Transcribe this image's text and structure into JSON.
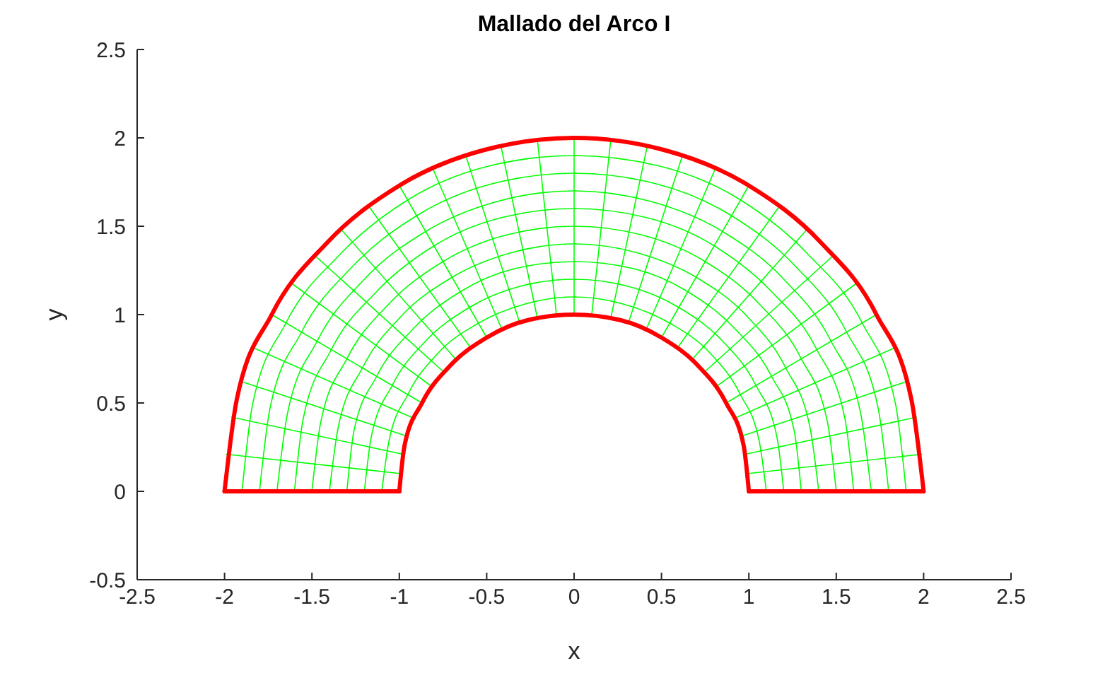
{
  "chart_data": {
    "type": "line",
    "title": "Mallado del Arco I",
    "xlabel": "x",
    "ylabel": "y",
    "xlim": [
      -2.5,
      2.5
    ],
    "xticks": [
      -2.5,
      -2,
      -1.5,
      -1,
      -0.5,
      0,
      0.5,
      1,
      1.5,
      2,
      2.5
    ],
    "ylim": [
      -0.5,
      2.5
    ],
    "yticks": [
      -0.5,
      0,
      0.5,
      1,
      1.5,
      2,
      2.5
    ],
    "series": [
      {
        "color": "#00ff00",
        "x": [
          1.1,
          1.06,
          0.95,
          0.78,
          0.55,
          0.28,
          0,
          -0.28,
          -0.55,
          -0.78,
          -0.95,
          -1.06,
          -1.1
        ],
        "values": [
          0,
          0.28,
          0.55,
          0.78,
          0.95,
          1.06,
          1.1,
          1.06,
          0.95,
          0.78,
          0.55,
          0.28,
          0
        ]
      },
      {
        "color": "#00ff00",
        "x": [
          1.2,
          1.16,
          1.04,
          0.85,
          0.6,
          0.31,
          0,
          -0.31,
          -0.6,
          -0.85,
          -1.04,
          -1.16,
          -1.2
        ],
        "values": [
          0,
          0.31,
          0.6,
          0.85,
          1.04,
          1.16,
          1.2,
          1.16,
          1.04,
          0.85,
          0.6,
          0.31,
          0
        ]
      },
      {
        "color": "#00ff00",
        "x": [
          1.3,
          1.26,
          1.13,
          0.92,
          0.65,
          0.34,
          0,
          -0.34,
          -0.65,
          -0.92,
          -1.13,
          -1.26,
          -1.3
        ],
        "values": [
          0,
          0.34,
          0.65,
          0.92,
          1.13,
          1.26,
          1.3,
          1.26,
          1.13,
          0.92,
          0.65,
          0.34,
          0
        ]
      },
      {
        "color": "#00ff00",
        "x": [
          1.4,
          1.35,
          1.21,
          0.99,
          0.7,
          0.36,
          0,
          -0.36,
          -0.7,
          -0.99,
          -1.21,
          -1.35,
          -1.4
        ],
        "values": [
          0,
          0.36,
          0.7,
          0.99,
          1.21,
          1.35,
          1.4,
          1.35,
          1.21,
          0.99,
          0.7,
          0.36,
          0
        ]
      },
      {
        "color": "#00ff00",
        "x": [
          1.5,
          1.45,
          1.3,
          1.06,
          0.75,
          0.39,
          0,
          -0.39,
          -0.75,
          -1.06,
          -1.3,
          -1.45,
          -1.5
        ],
        "values": [
          0,
          0.39,
          0.75,
          1.06,
          1.3,
          1.45,
          1.5,
          1.45,
          1.3,
          1.06,
          0.75,
          0.39,
          0
        ]
      },
      {
        "color": "#00ff00",
        "x": [
          1.6,
          1.55,
          1.39,
          1.13,
          0.8,
          0.41,
          0,
          -0.41,
          -0.8,
          -1.13,
          -1.39,
          -1.55,
          -1.6
        ],
        "values": [
          0,
          0.41,
          0.8,
          1.13,
          1.39,
          1.55,
          1.6,
          1.55,
          1.39,
          1.13,
          0.8,
          0.41,
          0
        ]
      },
      {
        "color": "#00ff00",
        "x": [
          1.7,
          1.64,
          1.47,
          1.2,
          0.85,
          0.44,
          0,
          -0.44,
          -0.85,
          -1.2,
          -1.47,
          -1.64,
          -1.7
        ],
        "values": [
          0,
          0.44,
          0.85,
          1.2,
          1.47,
          1.64,
          1.7,
          1.64,
          1.47,
          1.2,
          0.85,
          0.44,
          0
        ]
      },
      {
        "color": "#00ff00",
        "x": [
          1.8,
          1.74,
          1.56,
          1.27,
          0.9,
          0.47,
          0,
          -0.47,
          -0.9,
          -1.27,
          -1.56,
          -1.74,
          -1.8
        ],
        "values": [
          0,
          0.47,
          0.9,
          1.27,
          1.56,
          1.74,
          1.8,
          1.74,
          1.56,
          1.27,
          0.9,
          0.47,
          0
        ]
      },
      {
        "color": "#00ff00",
        "x": [
          1.9,
          1.84,
          1.65,
          1.34,
          0.95,
          0.49,
          0,
          -0.49,
          -0.95,
          -1.34,
          -1.65,
          -1.84,
          -1.9
        ],
        "values": [
          0,
          0.49,
          0.95,
          1.34,
          1.65,
          1.84,
          1.9,
          1.84,
          1.65,
          1.34,
          0.95,
          0.49,
          0
        ]
      },
      {
        "color": "#00ff00",
        "x": [
          0.99,
          1.99
        ],
        "values": [
          0.1,
          0.21
        ]
      },
      {
        "color": "#00ff00",
        "x": [
          0.98,
          1.96
        ],
        "values": [
          0.21,
          0.42
        ]
      },
      {
        "color": "#00ff00",
        "x": [
          0.95,
          1.9
        ],
        "values": [
          0.31,
          0.62
        ]
      },
      {
        "color": "#00ff00",
        "x": [
          0.91,
          1.83
        ],
        "values": [
          0.41,
          0.81
        ]
      },
      {
        "color": "#00ff00",
        "x": [
          0.87,
          1.73
        ],
        "values": [
          0.5,
          1
        ]
      },
      {
        "color": "#00ff00",
        "x": [
          0.81,
          1.62
        ],
        "values": [
          0.59,
          1.18
        ]
      },
      {
        "color": "#00ff00",
        "x": [
          0.74,
          1.49
        ],
        "values": [
          0.67,
          1.34
        ]
      },
      {
        "color": "#00ff00",
        "x": [
          0.67,
          1.34
        ],
        "values": [
          0.74,
          1.49
        ]
      },
      {
        "color": "#00ff00",
        "x": [
          0.59,
          1.18
        ],
        "values": [
          0.81,
          1.62
        ]
      },
      {
        "color": "#00ff00",
        "x": [
          0.5,
          1
        ],
        "values": [
          0.87,
          1.73
        ]
      },
      {
        "color": "#00ff00",
        "x": [
          0.41,
          0.81
        ],
        "values": [
          0.91,
          1.83
        ]
      },
      {
        "color": "#00ff00",
        "x": [
          0.31,
          0.62
        ],
        "values": [
          0.95,
          1.9
        ]
      },
      {
        "color": "#00ff00",
        "x": [
          0.21,
          0.42
        ],
        "values": [
          0.98,
          1.96
        ]
      },
      {
        "color": "#00ff00",
        "x": [
          0.1,
          0.21
        ],
        "values": [
          0.99,
          1.99
        ]
      },
      {
        "color": "#00ff00",
        "x": [
          0,
          0
        ],
        "values": [
          1,
          2
        ]
      },
      {
        "color": "#00ff00",
        "x": [
          -0.1,
          -0.21
        ],
        "values": [
          0.99,
          1.99
        ]
      },
      {
        "color": "#00ff00",
        "x": [
          -0.21,
          -0.42
        ],
        "values": [
          0.98,
          1.96
        ]
      },
      {
        "color": "#00ff00",
        "x": [
          -0.31,
          -0.62
        ],
        "values": [
          0.95,
          1.9
        ]
      },
      {
        "color": "#00ff00",
        "x": [
          -0.41,
          -0.81
        ],
        "values": [
          0.91,
          1.83
        ]
      },
      {
        "color": "#00ff00",
        "x": [
          -0.5,
          -1
        ],
        "values": [
          0.87,
          1.73
        ]
      },
      {
        "color": "#00ff00",
        "x": [
          -0.59,
          -1.18
        ],
        "values": [
          0.81,
          1.62
        ]
      },
      {
        "color": "#00ff00",
        "x": [
          -0.67,
          -1.34
        ],
        "values": [
          0.74,
          1.49
        ]
      },
      {
        "color": "#00ff00",
        "x": [
          -0.74,
          -1.49
        ],
        "values": [
          0.67,
          1.34
        ]
      },
      {
        "color": "#00ff00",
        "x": [
          -0.81,
          -1.62
        ],
        "values": [
          0.59,
          1.18
        ]
      },
      {
        "color": "#00ff00",
        "x": [
          -0.87,
          -1.73
        ],
        "values": [
          0.5,
          1
        ]
      },
      {
        "color": "#00ff00",
        "x": [
          -0.91,
          -1.83
        ],
        "values": [
          0.41,
          0.81
        ]
      },
      {
        "color": "#00ff00",
        "x": [
          -0.95,
          -1.9
        ],
        "values": [
          0.31,
          0.62
        ]
      },
      {
        "color": "#00ff00",
        "x": [
          -0.98,
          -1.96
        ],
        "values": [
          0.21,
          0.42
        ]
      },
      {
        "color": "#00ff00",
        "x": [
          -0.99,
          -1.99
        ],
        "values": [
          0.1,
          0.21
        ]
      },
      {
        "color": "#ff0000",
        "x": [
          2,
          1.93,
          1.73,
          1.41,
          1,
          0.52,
          0,
          -0.52,
          -1,
          -1.41,
          -1.73,
          -1.93,
          -2
        ],
        "values": [
          0,
          0.52,
          1,
          1.41,
          1.73,
          1.93,
          2,
          1.93,
          1.73,
          1.41,
          1,
          0.52,
          0
        ]
      },
      {
        "color": "#ff0000",
        "x": [
          -1,
          -0.97,
          -0.87,
          -0.71,
          -0.5,
          -0.26,
          0,
          0.26,
          0.5,
          0.71,
          0.87,
          0.97,
          1
        ],
        "values": [
          0,
          0.26,
          0.5,
          0.71,
          0.87,
          0.97,
          1,
          0.97,
          0.87,
          0.71,
          0.5,
          0.26,
          0
        ]
      },
      {
        "color": "#ff0000",
        "x": [
          -2,
          -1
        ],
        "values": [
          0,
          0
        ]
      },
      {
        "color": "#ff0000",
        "x": [
          1,
          2
        ],
        "values": [
          0,
          0
        ]
      }
    ]
  }
}
